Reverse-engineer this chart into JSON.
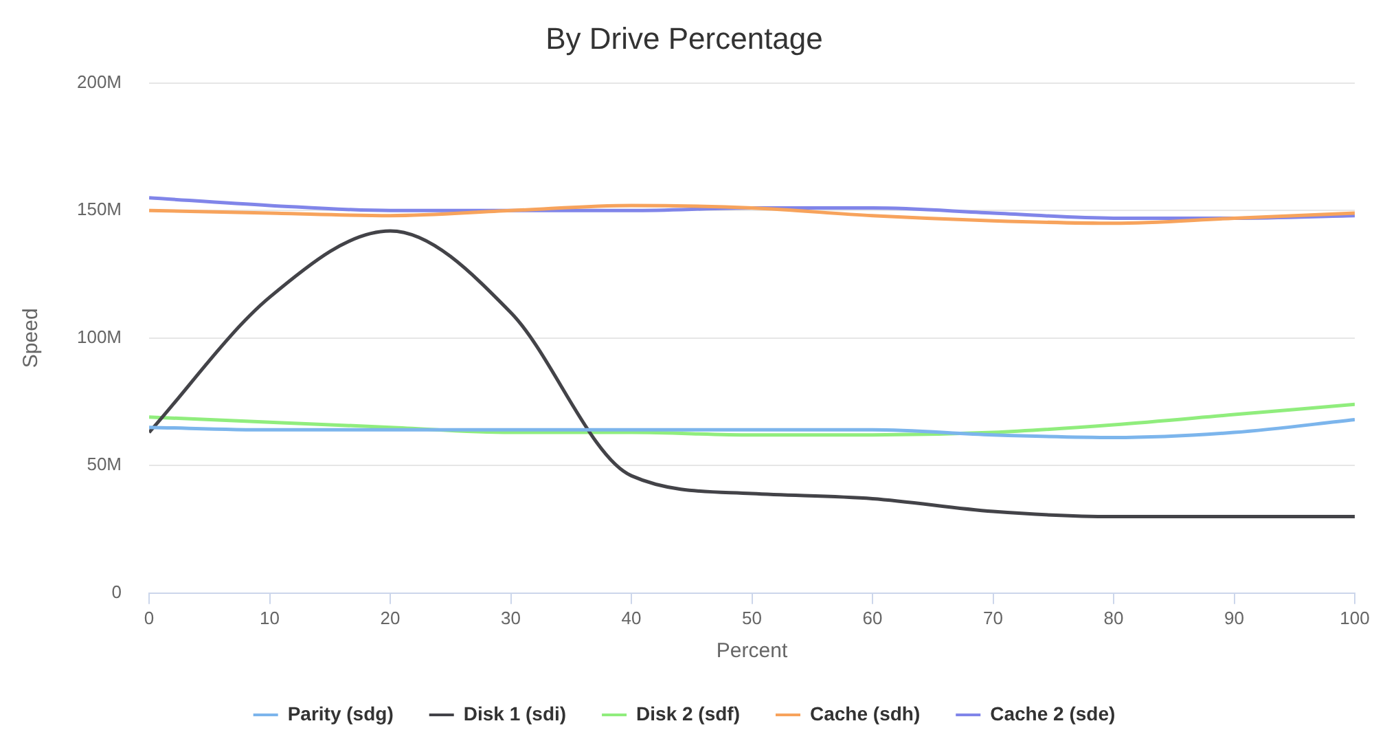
{
  "chart_data": {
    "type": "line",
    "title": "By Drive Percentage",
    "xlabel": "Percent",
    "ylabel": "Speed",
    "x": [
      0,
      10,
      20,
      30,
      40,
      50,
      60,
      70,
      80,
      90,
      100
    ],
    "xlim": [
      0,
      100
    ],
    "xticks": [
      0,
      10,
      20,
      30,
      40,
      50,
      60,
      70,
      80,
      90,
      100
    ],
    "ylim": [
      0,
      200
    ],
    "yticks": [
      0,
      {
        "value": 50,
        "label": "50M"
      },
      {
        "value": 100,
        "label": "100M"
      },
      {
        "value": 150,
        "label": "150M"
      },
      {
        "value": 200,
        "label": "200M"
      }
    ],
    "grid": "y",
    "legend": "bottom",
    "marker": "none",
    "line_style": "solid",
    "series": [
      {
        "name": "Parity (sdg)",
        "color": "#7cb5ec",
        "values": [
          65,
          64,
          64,
          64,
          64,
          64,
          64,
          62,
          61,
          63,
          68
        ]
      },
      {
        "name": "Disk 1 (sdi)",
        "color": "#434348",
        "values": [
          63,
          116,
          142,
          110,
          46,
          39,
          37,
          32,
          30,
          30,
          30
        ]
      },
      {
        "name": "Disk 2 (sdf)",
        "color": "#90ed7d",
        "values": [
          69,
          67,
          65,
          63,
          63,
          62,
          62,
          63,
          66,
          70,
          74
        ]
      },
      {
        "name": "Cache (sdh)",
        "color": "#f7a35c",
        "values": [
          150,
          149,
          148,
          150,
          152,
          151,
          148,
          146,
          145,
          147,
          149
        ]
      },
      {
        "name": "Cache 2 (sde)",
        "color": "#8085e9",
        "values": [
          155,
          152,
          150,
          150,
          150,
          151,
          151,
          149,
          147,
          147,
          148
        ]
      }
    ]
  }
}
